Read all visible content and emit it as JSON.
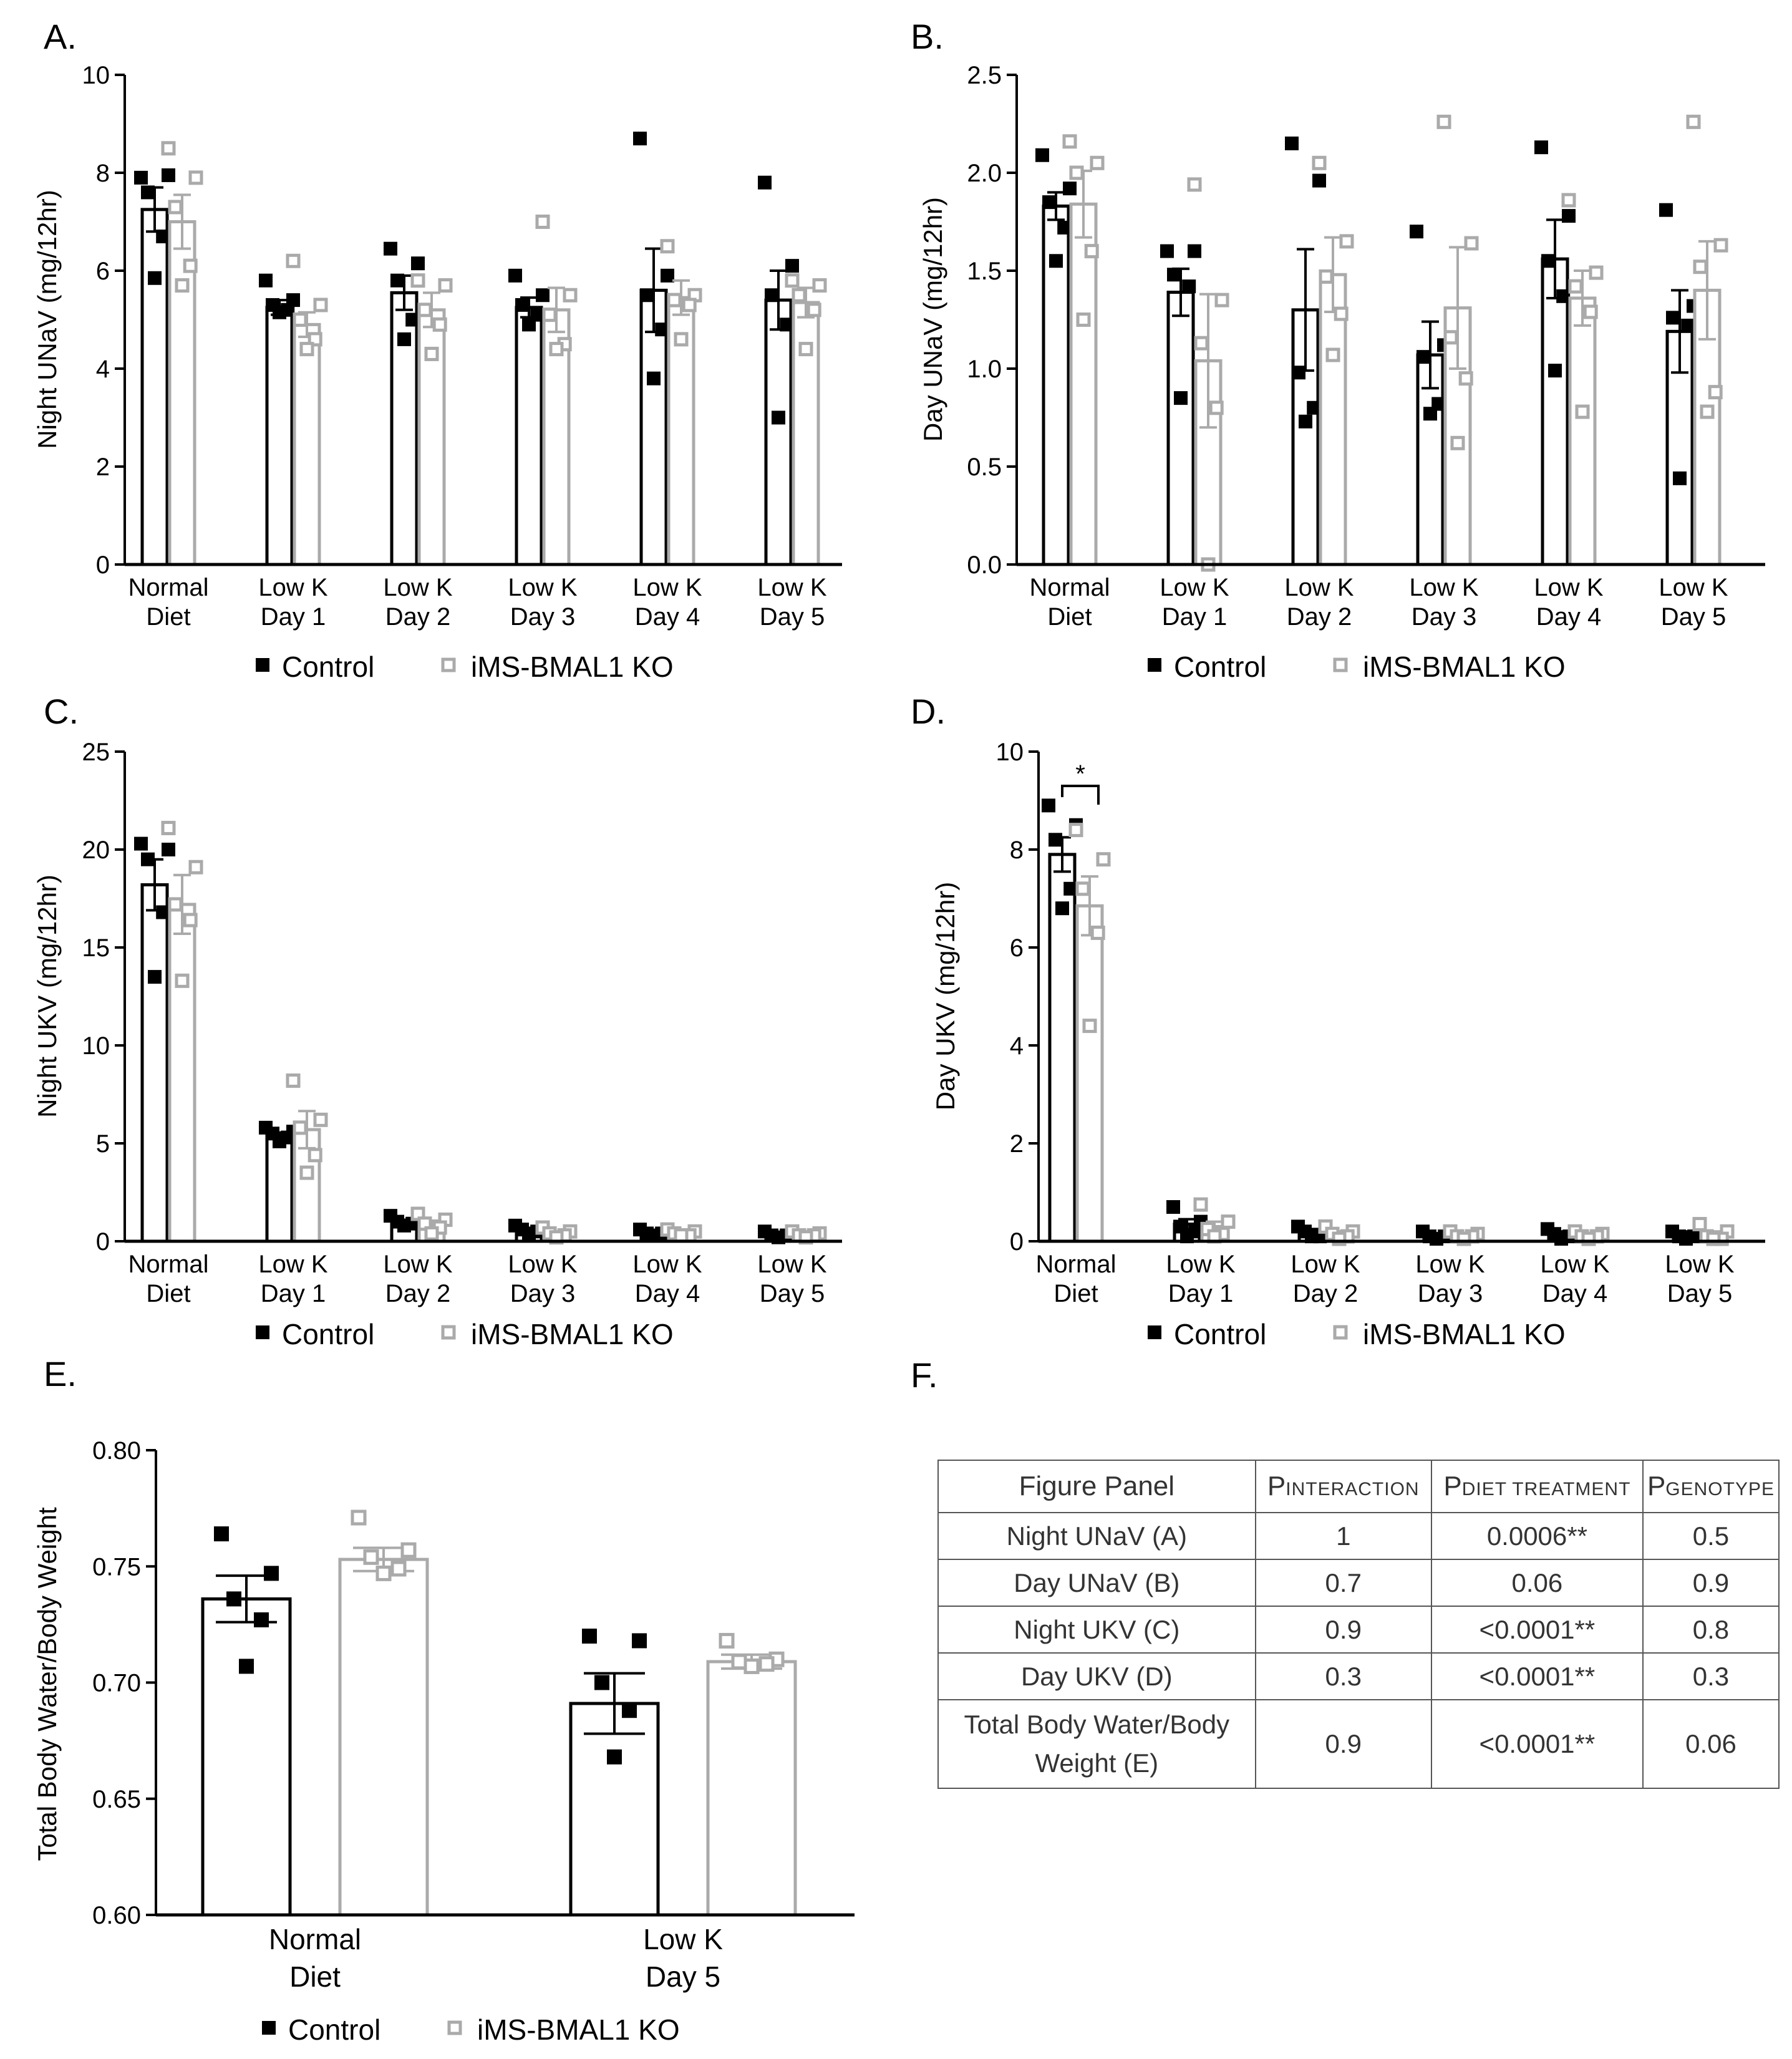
{
  "colors": {
    "control": "#000000",
    "ko": "#aaaaaa"
  },
  "legend": {
    "control": "Control",
    "ko": "iMS-BMAL1 KO",
    "control_marker": "filled-square",
    "ko_marker": "open-square"
  },
  "chart_data": [
    {
      "panel": "A.",
      "type": "bar",
      "title": "",
      "ylabel": "Night UNaV (mg/12hr)",
      "xlabel": "",
      "ylim": [
        0,
        10
      ],
      "yticks": [
        "0",
        "2",
        "4",
        "6",
        "8",
        "10"
      ],
      "ytick_values": [
        0,
        2,
        4,
        6,
        8,
        10
      ],
      "categories": [
        [
          "Normal",
          "Diet"
        ],
        [
          "Low K",
          "Day 1"
        ],
        [
          "Low K",
          "Day 2"
        ],
        [
          "Low K",
          "Day 3"
        ],
        [
          "Low K",
          "Day 4"
        ],
        [
          "Low K",
          "Day 5"
        ]
      ],
      "series": [
        {
          "name": "Control",
          "values": [
            7.25,
            5.25,
            5.55,
            5.25,
            5.6,
            5.4
          ],
          "sem": [
            0.45,
            0.15,
            0.35,
            0.2,
            0.85,
            0.6
          ],
          "points": [
            [
              7.9,
              7.95,
              7.6,
              6.7,
              5.85
            ],
            [
              5.8,
              5.4,
              5.3,
              5.2,
              5.15
            ],
            [
              6.45,
              6.15,
              5.8,
              5.0,
              4.6
            ],
            [
              5.9,
              5.5,
              5.3,
              5.1,
              4.9
            ],
            [
              8.7,
              5.9,
              5.5,
              4.8,
              3.8
            ],
            [
              7.8,
              6.1,
              5.5,
              4.9,
              3.0
            ]
          ]
        },
        {
          "name": "iMS-BMAL1 KO",
          "values": [
            7.0,
            4.9,
            5.2,
            5.2,
            5.45,
            5.35
          ],
          "sem": [
            0.55,
            0.25,
            0.35,
            0.45,
            0.35,
            0.3
          ],
          "points": [
            [
              8.5,
              7.9,
              7.3,
              6.1,
              5.7
            ],
            [
              6.2,
              5.3,
              5.0,
              4.6,
              4.4
            ],
            [
              5.8,
              5.7,
              5.2,
              4.9,
              4.3
            ],
            [
              7.0,
              5.5,
              5.1,
              4.5,
              4.4
            ],
            [
              6.5,
              5.5,
              5.4,
              5.3,
              4.6
            ],
            [
              5.8,
              5.7,
              5.5,
              5.2,
              4.4
            ]
          ]
        }
      ]
    },
    {
      "panel": "B.",
      "type": "bar",
      "title": "",
      "ylabel": "Day UNaV (mg/12hr)",
      "xlabel": "",
      "ylim": [
        0,
        2.5
      ],
      "yticks": [
        "0.0",
        "0.5",
        "1.0",
        "1.5",
        "2.0",
        "2.5"
      ],
      "ytick_values": [
        0,
        0.5,
        1.0,
        1.5,
        2.0,
        2.5
      ],
      "categories": [
        [
          "Normal",
          "Diet"
        ],
        [
          "Low K",
          "Day 1"
        ],
        [
          "Low K",
          "Day 2"
        ],
        [
          "Low K",
          "Day 3"
        ],
        [
          "Low K",
          "Day 4"
        ],
        [
          "Low K",
          "Day 5"
        ]
      ],
      "series": [
        {
          "name": "Control",
          "values": [
            1.83,
            1.39,
            1.3,
            1.07,
            1.56,
            1.19
          ],
          "sem": [
            0.07,
            0.12,
            0.31,
            0.17,
            0.2,
            0.21
          ],
          "points": [
            [
              2.09,
              1.92,
              1.85,
              1.72,
              1.55
            ],
            [
              1.6,
              1.6,
              1.48,
              1.42,
              0.85
            ],
            [
              2.15,
              1.96,
              0.98,
              0.8,
              0.73
            ],
            [
              1.7,
              1.12,
              1.06,
              0.82,
              0.77
            ],
            [
              2.13,
              1.78,
              1.55,
              1.37,
              0.99
            ],
            [
              1.81,
              1.32,
              1.26,
              1.22,
              0.44
            ]
          ]
        },
        {
          "name": "iMS-BMAL1 KO",
          "values": [
            1.84,
            1.04,
            1.48,
            1.31,
            1.36,
            1.4
          ],
          "sem": [
            0.17,
            0.34,
            0.19,
            0.31,
            0.14,
            0.25
          ],
          "points": [
            [
              2.16,
              2.05,
              2.0,
              1.6,
              1.25
            ],
            [
              1.94,
              1.35,
              1.13,
              0.8,
              0.0
            ],
            [
              2.05,
              1.65,
              1.47,
              1.28,
              1.07
            ],
            [
              2.26,
              1.64,
              1.16,
              0.95,
              0.62
            ],
            [
              1.86,
              1.49,
              1.42,
              1.29,
              0.78
            ],
            [
              2.26,
              1.63,
              1.52,
              0.88,
              0.78
            ]
          ]
        }
      ]
    },
    {
      "panel": "C.",
      "type": "bar",
      "title": "",
      "ylabel": "Night UKV (mg/12hr)",
      "xlabel": "",
      "ylim": [
        0,
        25
      ],
      "yticks": [
        "0",
        "5",
        "10",
        "15",
        "20",
        "25"
      ],
      "ytick_values": [
        0,
        5,
        10,
        15,
        20,
        25
      ],
      "categories": [
        [
          "Normal",
          "Diet"
        ],
        [
          "Low K",
          "Day 1"
        ],
        [
          "Low K",
          "Day 2"
        ],
        [
          "Low K",
          "Day 3"
        ],
        [
          "Low K",
          "Day 4"
        ],
        [
          "Low K",
          "Day 5"
        ]
      ],
      "series": [
        {
          "name": "Control",
          "values": [
            18.2,
            5.4,
            1.0,
            0.6,
            0.45,
            0.35
          ],
          "sem": [
            1.3,
            0.15,
            0.1,
            0.05,
            0.05,
            0.05
          ],
          "points": [
            [
              20.3,
              20.0,
              19.5,
              16.8,
              13.5
            ],
            [
              5.8,
              5.6,
              5.5,
              5.3,
              5.1
            ],
            [
              1.3,
              1.1,
              1.0,
              0.9,
              0.8
            ],
            [
              0.8,
              0.7,
              0.6,
              0.5,
              0.4
            ],
            [
              0.6,
              0.5,
              0.4,
              0.4,
              0.3
            ],
            [
              0.5,
              0.4,
              0.3,
              0.3,
              0.2
            ]
          ]
        },
        {
          "name": "iMS-BMAL1 KO",
          "values": [
            17.2,
            5.7,
            0.9,
            0.4,
            0.45,
            0.35
          ],
          "sem": [
            1.5,
            0.95,
            0.15,
            0.05,
            0.05,
            0.05
          ],
          "points": [
            [
              21.1,
              19.1,
              17.2,
              16.4,
              13.3
            ],
            [
              8.2,
              6.2,
              5.8,
              4.4,
              3.5
            ],
            [
              1.4,
              1.1,
              0.9,
              0.7,
              0.4
            ],
            [
              0.7,
              0.5,
              0.4,
              0.3,
              0.2
            ],
            [
              0.6,
              0.5,
              0.4,
              0.3,
              0.3
            ],
            [
              0.5,
              0.4,
              0.3,
              0.3,
              0.2
            ]
          ]
        }
      ]
    },
    {
      "panel": "D.",
      "type": "bar",
      "title": "",
      "ylabel": "Day UKV (mg/12hr)",
      "xlabel": "",
      "ylim": [
        0,
        10
      ],
      "yticks": [
        "0",
        "2",
        "4",
        "6",
        "8",
        "10"
      ],
      "ytick_values": [
        0,
        2,
        4,
        6,
        8,
        10
      ],
      "significance": {
        "label": "*",
        "between": [
          "Control",
          "iMS-BMAL1 KO"
        ],
        "category_index": 0
      },
      "categories": [
        [
          "Normal",
          "Diet"
        ],
        [
          "Low K",
          "Day 1"
        ],
        [
          "Low K",
          "Day 2"
        ],
        [
          "Low K",
          "Day 3"
        ],
        [
          "Low K",
          "Day 4"
        ],
        [
          "Low K",
          "Day 5"
        ]
      ],
      "series": [
        {
          "name": "Control",
          "values": [
            7.9,
            0.35,
            0.2,
            0.12,
            0.15,
            0.15
          ],
          "sem": [
            0.35,
            0.1,
            0.05,
            0.03,
            0.05,
            0.05
          ],
          "points": [
            [
              8.9,
              8.5,
              8.2,
              7.2,
              6.8
            ],
            [
              0.7,
              0.4,
              0.3,
              0.2,
              0.1
            ],
            [
              0.3,
              0.2,
              0.2,
              0.1,
              0.1
            ],
            [
              0.2,
              0.15,
              0.1,
              0.1,
              0.05
            ],
            [
              0.25,
              0.2,
              0.15,
              0.1,
              0.05
            ],
            [
              0.2,
              0.15,
              0.1,
              0.1,
              0.05
            ]
          ]
        },
        {
          "name": "iMS-BMAL1 KO",
          "values": [
            6.85,
            0.3,
            0.15,
            0.1,
            0.1,
            0.15
          ],
          "sem": [
            0.6,
            0.1,
            0.05,
            0.03,
            0.03,
            0.05
          ],
          "points": [
            [
              8.4,
              7.8,
              7.2,
              6.3,
              4.4
            ],
            [
              0.75,
              0.4,
              0.25,
              0.15,
              0.1
            ],
            [
              0.3,
              0.2,
              0.15,
              0.1,
              0.05
            ],
            [
              0.2,
              0.15,
              0.1,
              0.1,
              0.05
            ],
            [
              0.2,
              0.15,
              0.1,
              0.1,
              0.05
            ],
            [
              0.35,
              0.2,
              0.1,
              0.05,
              0.05
            ]
          ]
        }
      ]
    },
    {
      "panel": "E.",
      "type": "bar",
      "title": "",
      "ylabel": "Total Body Water/Body Weight",
      "xlabel": "",
      "ylim": [
        0.6,
        0.8
      ],
      "yticks": [
        "0.60",
        "0.65",
        "0.70",
        "0.75",
        "0.80"
      ],
      "ytick_values": [
        0.6,
        0.65,
        0.7,
        0.75,
        0.8
      ],
      "categories": [
        [
          "Normal",
          "Diet"
        ],
        [
          "Low K",
          "Day 5"
        ]
      ],
      "series": [
        {
          "name": "Control",
          "values": [
            0.736,
            0.691
          ],
          "sem": [
            0.01,
            0.013
          ],
          "points": [
            [
              0.764,
              0.747,
              0.736,
              0.727,
              0.707
            ],
            [
              0.72,
              0.718,
              0.7,
              0.688,
              0.668
            ]
          ]
        },
        {
          "name": "iMS-BMAL1 KO",
          "values": [
            0.753,
            0.709
          ],
          "sem": [
            0.005,
            0.003
          ],
          "points": [
            [
              0.771,
              0.757,
              0.754,
              0.749,
              0.747
            ],
            [
              0.718,
              0.71,
              0.709,
              0.708,
              0.707
            ]
          ]
        }
      ]
    }
  ],
  "table": {
    "panel": "F.",
    "header": {
      "figure_panel": "Figure Panel",
      "p_main": "P",
      "interaction_sub": "INTERACTION",
      "diet_sub": "DIET TREATMENT",
      "genotype_sub": "GENOTYPE"
    },
    "rows": [
      {
        "panel": "Night UNaV (A)",
        "interaction": "1",
        "diet": "0.0006**",
        "genotype": "0.5"
      },
      {
        "panel": "Day UNaV (B)",
        "interaction": "0.7",
        "diet": "0.06",
        "genotype": "0.9"
      },
      {
        "panel": "Night UKV (C)",
        "interaction": "0.9",
        "diet": "<0.0001**",
        "genotype": "0.8"
      },
      {
        "panel": "Day UKV (D)",
        "interaction": "0.3",
        "diet": "<0.0001**",
        "genotype": "0.3"
      },
      {
        "panel_line1": "Total Body Water/Body",
        "panel_line2": "Weight (E)",
        "interaction": "0.9",
        "diet": "<0.0001**",
        "genotype": "0.06"
      }
    ]
  }
}
